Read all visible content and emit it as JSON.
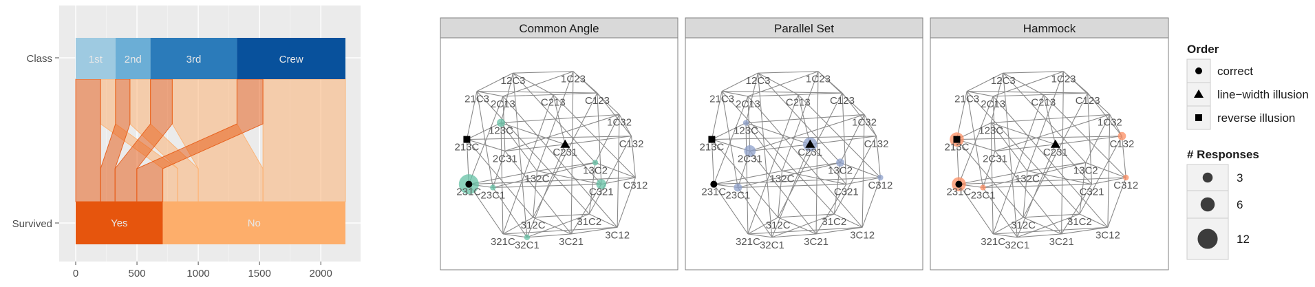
{
  "chart_data": [
    {
      "type": "parallel-set",
      "axes": [
        "Class",
        "Survived"
      ],
      "xlim": [
        0,
        2201
      ],
      "xticks": [
        0,
        500,
        1000,
        1500,
        2000
      ],
      "grid": true,
      "class_levels": [
        {
          "label": "1st",
          "count": 325,
          "color": "#9ecae1"
        },
        {
          "label": "2nd",
          "count": 285,
          "color": "#6baed6"
        },
        {
          "label": "3rd",
          "count": 706,
          "color": "#2b7bba"
        },
        {
          "label": "Crew",
          "count": 885,
          "color": "#08519c"
        }
      ],
      "survived_levels": [
        {
          "label": "Yes",
          "count": 711,
          "color": "#e6550d"
        },
        {
          "label": "No",
          "count": 1490,
          "color": "#fdae6b"
        }
      ],
      "ribbons": [
        {
          "class": "1st",
          "survived": "Yes",
          "count": 203
        },
        {
          "class": "2nd",
          "survived": "Yes",
          "count": 118
        },
        {
          "class": "3rd",
          "survived": "Yes",
          "count": 178
        },
        {
          "class": "Crew",
          "survived": "Yes",
          "count": 212
        },
        {
          "class": "1st",
          "survived": "No",
          "count": 122
        },
        {
          "class": "2nd",
          "survived": "No",
          "count": 167
        },
        {
          "class": "3rd",
          "survived": "No",
          "count": 528
        },
        {
          "class": "Crew",
          "survived": "No",
          "count": 673
        }
      ]
    },
    {
      "type": "network-facets",
      "facets": [
        "Common Angle",
        "Parallel Set",
        "Hammock"
      ],
      "facet_colors": [
        "#66c2a5",
        "#8da0cb",
        "#fc8d62"
      ],
      "nodes": [
        {
          "id": "12C3",
          "x": 0.3,
          "y": 0.15
        },
        {
          "id": "1C23",
          "x": 0.6,
          "y": 0.14
        },
        {
          "id": "21C3",
          "x": 0.12,
          "y": 0.26
        },
        {
          "id": "2C13",
          "x": 0.25,
          "y": 0.29
        },
        {
          "id": "C213",
          "x": 0.5,
          "y": 0.28
        },
        {
          "id": "C123",
          "x": 0.72,
          "y": 0.27
        },
        {
          "id": "123C",
          "x": 0.24,
          "y": 0.45
        },
        {
          "id": "1C32",
          "x": 0.83,
          "y": 0.4
        },
        {
          "id": "213C",
          "x": 0.07,
          "y": 0.55
        },
        {
          "id": "C132",
          "x": 0.89,
          "y": 0.53
        },
        {
          "id": "2C31",
          "x": 0.26,
          "y": 0.62
        },
        {
          "id": "C231",
          "x": 0.56,
          "y": 0.58
        },
        {
          "id": "13C2",
          "x": 0.71,
          "y": 0.69
        },
        {
          "id": "132C",
          "x": 0.42,
          "y": 0.74
        },
        {
          "id": "231C",
          "x": 0.08,
          "y": 0.82
        },
        {
          "id": "23C1",
          "x": 0.2,
          "y": 0.84
        },
        {
          "id": "C321",
          "x": 0.74,
          "y": 0.82
        },
        {
          "id": "C312",
          "x": 0.91,
          "y": 0.78
        },
        {
          "id": "312C",
          "x": 0.4,
          "y": 1.02
        },
        {
          "id": "31C2",
          "x": 0.68,
          "y": 1.0
        },
        {
          "id": "321C",
          "x": 0.25,
          "y": 1.12
        },
        {
          "id": "32C1",
          "x": 0.37,
          "y": 1.14
        },
        {
          "id": "3C21",
          "x": 0.59,
          "y": 1.12
        },
        {
          "id": "3C12",
          "x": 0.82,
          "y": 1.08
        }
      ],
      "markers": [
        {
          "node": "231C",
          "order": "correct"
        },
        {
          "node": "C231",
          "order": "line-width illusion"
        },
        {
          "node": "213C",
          "order": "reverse illusion"
        }
      ],
      "responses": {
        "Common Angle": [
          {
            "node": "231C",
            "count": 12
          },
          {
            "node": "123C",
            "count": 2
          },
          {
            "node": "23C1",
            "count": 1
          },
          {
            "node": "13C2",
            "count": 1
          },
          {
            "node": "C321",
            "count": 3
          },
          {
            "node": "32C1",
            "count": 1
          }
        ],
        "Parallel Set": [
          {
            "node": "C231",
            "count": 6
          },
          {
            "node": "2C31",
            "count": 4
          },
          {
            "node": "123C",
            "count": 1
          },
          {
            "node": "13C2",
            "count": 2
          },
          {
            "node": "23C1",
            "count": 2
          },
          {
            "node": "C312",
            "count": 1
          }
        ],
        "Hammock": [
          {
            "node": "213C",
            "count": 6
          },
          {
            "node": "231C",
            "count": 6
          },
          {
            "node": "C132",
            "count": 2
          },
          {
            "node": "23C1",
            "count": 1
          },
          {
            "node": "C312",
            "count": 1
          }
        ]
      },
      "legend": {
        "order_title": "Order",
        "order_items": [
          {
            "label": "correct",
            "shape": "circle"
          },
          {
            "label": "line−width illusion",
            "shape": "triangle"
          },
          {
            "label": "reverse illusion",
            "shape": "square"
          }
        ],
        "size_title": "# Responses",
        "size_items": [
          {
            "label": "3",
            "value": 3
          },
          {
            "label": "6",
            "value": 6
          },
          {
            "label": "12",
            "value": 12
          }
        ],
        "position": "right"
      }
    }
  ]
}
